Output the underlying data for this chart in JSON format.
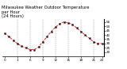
{
  "title": "Milwaukee Weather Outdoor Temperature\nper Hour\n(24 Hours)",
  "hours": [
    0,
    1,
    2,
    3,
    4,
    5,
    6,
    7,
    8,
    9,
    10,
    11,
    12,
    13,
    14,
    15,
    16,
    17,
    18,
    19,
    20,
    21,
    22,
    23
  ],
  "temps": [
    42,
    38,
    34,
    30,
    27,
    25,
    23,
    23,
    26,
    32,
    38,
    44,
    49,
    53,
    55,
    54,
    52,
    48,
    44,
    40,
    36,
    32,
    30,
    30
  ],
  "line_color": "#ff0000",
  "marker_color": "#111111",
  "bg_color": "#ffffff",
  "grid_color": "#888888",
  "ylim": [
    15,
    58
  ],
  "yticks": [
    20,
    25,
    30,
    35,
    40,
    45,
    50,
    55
  ],
  "xlim": [
    -0.5,
    23.5
  ],
  "xticks": [
    0,
    3,
    6,
    9,
    12,
    15,
    18,
    21,
    23
  ],
  "xticklabels": [
    "0",
    "3",
    "6",
    "9",
    "12",
    "15",
    "18",
    "21",
    "23"
  ],
  "title_fontsize": 3.8,
  "tick_fontsize": 3.0,
  "linewidth": 0.6,
  "markersize": 1.4
}
